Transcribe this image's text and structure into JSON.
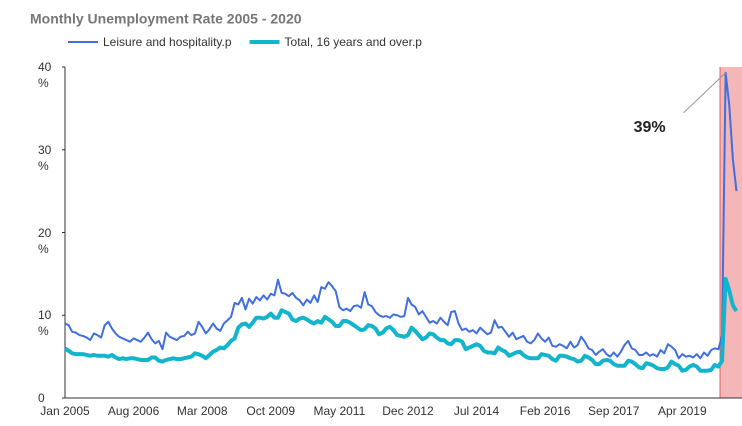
{
  "chart_data": {
    "type": "line",
    "title": "Monthly Unemployment Rate 2005 - 2020",
    "categories": [
      "Jan 2005",
      null,
      null,
      null,
      null,
      null,
      null,
      null,
      null,
      null,
      null,
      null,
      null,
      null,
      null,
      null,
      null,
      null,
      null,
      "Aug 2006",
      null,
      null,
      null,
      null,
      null,
      null,
      null,
      null,
      null,
      null,
      null,
      null,
      null,
      null,
      null,
      null,
      null,
      null,
      "Mar 2008",
      null,
      null,
      null,
      null,
      null,
      null,
      null,
      null,
      null,
      null,
      null,
      null,
      null,
      null,
      null,
      null,
      null,
      null,
      "Oct 2009",
      null,
      null,
      null,
      null,
      null,
      null,
      null,
      null,
      null,
      null,
      null,
      null,
      null,
      null,
      null,
      null,
      null,
      null,
      "May 2011",
      null,
      null,
      null,
      null,
      null,
      null,
      null,
      null,
      null,
      null,
      null,
      null,
      null,
      null,
      null,
      null,
      null,
      null,
      "Dec 2012",
      null,
      null,
      null,
      null,
      null,
      null,
      null,
      null,
      null,
      null,
      null,
      null,
      null,
      null,
      null,
      null,
      null,
      null,
      "Jul 2014",
      null,
      null,
      null,
      null,
      null,
      null,
      null,
      null,
      null,
      null,
      null,
      null,
      null,
      null,
      null,
      null,
      null,
      null,
      "Feb 2016",
      null,
      null,
      null,
      null,
      null,
      null,
      null,
      null,
      null,
      null,
      null,
      null,
      null,
      null,
      null,
      null,
      null,
      null,
      "Sep 2017",
      null,
      null,
      null,
      null,
      null,
      null,
      null,
      null,
      null,
      null,
      null,
      null,
      null,
      null,
      null,
      null,
      null,
      null,
      "Apr 2019",
      null,
      null,
      null,
      null,
      null,
      null,
      null,
      null,
      null,
      null,
      null,
      null,
      null,
      null,
      null
    ],
    "series": [
      {
        "name": "Leisure and hospitality.p",
        "color": "#3f6fe0",
        "width": 2,
        "values": [
          9.0,
          8.8,
          8.0,
          7.9,
          7.6,
          7.5,
          7.3,
          7.0,
          7.8,
          7.6,
          7.3,
          8.8,
          9.2,
          8.4,
          7.8,
          7.4,
          7.2,
          7.0,
          6.8,
          7.2,
          7.0,
          6.8,
          7.3,
          7.9,
          7.1,
          6.6,
          6.9,
          5.9,
          7.9,
          7.4,
          7.2,
          7.0,
          7.4,
          7.5,
          8.0,
          7.6,
          7.8,
          9.2,
          8.6,
          7.8,
          8.3,
          9.0,
          8.4,
          8.1,
          9.0,
          9.4,
          9.8,
          11.5,
          11.3,
          12.1,
          10.7,
          12.0,
          11.4,
          12.2,
          11.8,
          12.4,
          11.9,
          12.6,
          12.4,
          14.3,
          12.7,
          12.6,
          12.3,
          12.7,
          12.1,
          11.8,
          11.2,
          11.9,
          11.5,
          12.4,
          11.6,
          13.4,
          13.2,
          14.0,
          13.5,
          12.9,
          11.0,
          10.6,
          10.8,
          10.5,
          11.1,
          11.2,
          10.9,
          12.8,
          11.3,
          11.1,
          10.4,
          10.0,
          9.8,
          9.9,
          9.7,
          10.1,
          10.0,
          9.8,
          9.9,
          12.1,
          11.3,
          11.0,
          10.1,
          10.5,
          9.8,
          9.1,
          9.3,
          9.0,
          9.7,
          9.2,
          8.8,
          10.4,
          10.5,
          9.0,
          8.2,
          8.4,
          8.0,
          8.2,
          7.8,
          8.5,
          8.1,
          7.7,
          7.9,
          9.4,
          8.5,
          8.6,
          8.0,
          7.4,
          7.9,
          7.1,
          7.3,
          7.5,
          6.8,
          6.6,
          7.0,
          7.8,
          7.2,
          6.8,
          7.3,
          6.3,
          6.2,
          6.5,
          6.3,
          6.0,
          6.8,
          6.1,
          6.4,
          7.4,
          6.8,
          6.0,
          5.8,
          5.2,
          5.6,
          5.9,
          5.3,
          5.0,
          5.5,
          5.0,
          5.6,
          6.4,
          6.9,
          6.0,
          5.8,
          5.2,
          5.2,
          5.5,
          5.1,
          5.3,
          5.0,
          5.8,
          5.4,
          6.5,
          6.2,
          5.8,
          4.8,
          5.3,
          5.0,
          5.1,
          4.9,
          5.3,
          4.8,
          5.5,
          5.1,
          5.8,
          6.0,
          5.9,
          7.5,
          39.3,
          35.4,
          28.9,
          25.0
        ]
      },
      {
        "name": "Total, 16 years and over.p",
        "color": "#12b5cb",
        "width": 4,
        "values": [
          6.0,
          5.7,
          5.4,
          5.3,
          5.3,
          5.3,
          5.2,
          5.1,
          5.2,
          5.1,
          5.1,
          5.1,
          5.0,
          5.2,
          4.9,
          4.7,
          4.8,
          4.7,
          4.8,
          4.8,
          4.7,
          4.6,
          4.6,
          4.6,
          4.9,
          4.9,
          4.5,
          4.4,
          4.6,
          4.7,
          4.8,
          4.7,
          4.7,
          4.8,
          4.9,
          5.0,
          5.4,
          5.3,
          5.1,
          4.8,
          5.2,
          5.6,
          5.8,
          6.1,
          6.0,
          6.4,
          6.9,
          7.2,
          8.5,
          8.9,
          9.0,
          8.6,
          9.1,
          9.7,
          9.7,
          9.6,
          9.8,
          10.2,
          9.7,
          9.7,
          10.6,
          10.4,
          10.2,
          9.5,
          9.3,
          9.6,
          9.7,
          9.5,
          9.2,
          9.0,
          9.3,
          9.1,
          9.8,
          9.5,
          9.2,
          8.7,
          8.7,
          9.3,
          9.3,
          9.1,
          8.8,
          8.5,
          8.2,
          8.3,
          8.8,
          8.7,
          8.4,
          7.7,
          7.9,
          8.4,
          8.6,
          8.2,
          7.6,
          7.5,
          7.4,
          7.6,
          8.5,
          8.1,
          7.6,
          7.1,
          7.3,
          7.8,
          7.7,
          7.3,
          7.0,
          7.0,
          6.6,
          6.5,
          7.0,
          7.0,
          6.8,
          5.9,
          6.1,
          6.3,
          6.5,
          6.3,
          5.7,
          5.5,
          5.5,
          5.4,
          6.1,
          5.8,
          5.6,
          5.1,
          5.3,
          5.5,
          5.6,
          5.2,
          4.9,
          4.8,
          4.8,
          4.8,
          5.3,
          5.2,
          5.1,
          4.7,
          4.5,
          5.1,
          5.1,
          5.0,
          4.8,
          4.7,
          4.4,
          4.5,
          5.1,
          4.9,
          4.6,
          4.1,
          4.1,
          4.5,
          4.6,
          4.5,
          4.1,
          3.9,
          3.9,
          3.9,
          4.5,
          4.4,
          4.1,
          3.7,
          3.6,
          4.2,
          4.1,
          3.9,
          3.6,
          3.5,
          3.5,
          3.7,
          4.4,
          4.1,
          3.9,
          3.3,
          3.4,
          3.8,
          4.0,
          3.8,
          3.3,
          3.3,
          3.3,
          3.4,
          4.0,
          3.8,
          4.5,
          14.4,
          13.0,
          11.2,
          10.5
        ]
      }
    ],
    "ylim": [
      0,
      40
    ],
    "yticks": [
      0,
      {
        "value": 10,
        "label": "10\n%"
      },
      {
        "value": 20,
        "label": "20\n%"
      },
      {
        "value": 30,
        "label": "30\n%"
      },
      {
        "value": 40,
        "label": "40\n%"
      }
    ],
    "annotations": [
      "39%"
    ],
    "grid": false
  }
}
